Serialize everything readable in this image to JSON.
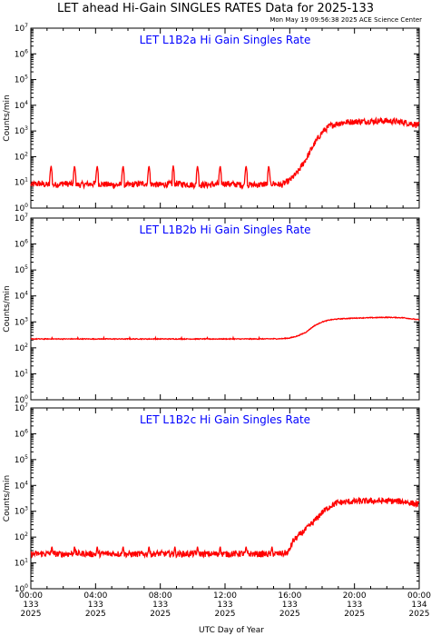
{
  "header": {
    "title": "LET ahead Hi-Gain SINGLES RATES Data for 2025-133",
    "timestamp": "Mon May 19 09:56:38 2025 ACE Science Center"
  },
  "colors": {
    "series": "#ff0000",
    "panel_title": "#0000ff",
    "axis": "#000000"
  },
  "x_axis_label": "UTC Day of Year",
  "chart_data": [
    {
      "type": "line",
      "title": "LET L1B2a Hi Gain Singles Rate",
      "ylabel": "Counts/min",
      "yscale": "log",
      "ylim": [
        1,
        10000000
      ],
      "ytick_exponents": [
        "0",
        "1",
        "2",
        "3",
        "4",
        "5",
        "6",
        "7"
      ],
      "xlim": [
        0,
        24
      ],
      "series": [
        {
          "x": [
            0,
            0.5,
            1,
            1.5,
            2,
            3,
            4,
            5,
            6,
            7,
            8,
            9,
            10,
            11,
            12,
            13,
            14,
            15,
            15.5,
            16,
            16.5,
            17,
            17.5,
            18,
            18.5,
            19,
            19.5,
            20,
            21,
            22,
            23,
            24
          ],
          "values": [
            8,
            9,
            8,
            8,
            9,
            8,
            9,
            8,
            8,
            9,
            8,
            9,
            8,
            8,
            9,
            8,
            8,
            9,
            8,
            12,
            25,
            80,
            300,
            900,
            1600,
            2000,
            2200,
            2300,
            2400,
            2500,
            2200,
            1700
          ]
        }
      ],
      "spikes_x": [
        1.25,
        2.7,
        4.1,
        5.7,
        7.3,
        8.8,
        10.3,
        11.7,
        13.3,
        14.7
      ],
      "spike_value": 45
    },
    {
      "type": "line",
      "title": "LET L1B2b Hi Gain Singles Rate",
      "ylabel": "Counts/min",
      "yscale": "log",
      "ylim": [
        1,
        10000000
      ],
      "ytick_exponents": [
        "0",
        "1",
        "2",
        "3",
        "4",
        "5",
        "6",
        "7"
      ],
      "xlim": [
        0,
        24
      ],
      "series": [
        {
          "x": [
            0,
            2,
            4,
            6,
            8,
            10,
            12,
            14,
            15.5,
            16,
            16.5,
            17,
            17.5,
            18,
            18.5,
            19,
            19.5,
            20,
            21,
            22,
            23,
            24
          ],
          "values": [
            220,
            220,
            220,
            220,
            220,
            220,
            220,
            220,
            225,
            240,
            290,
            400,
            700,
            1000,
            1200,
            1300,
            1350,
            1400,
            1450,
            1500,
            1450,
            1200
          ]
        }
      ],
      "spikes_x": [
        1.3,
        2.9,
        4.5,
        6.1,
        7.7,
        9.3,
        10.9,
        12.5,
        14.1
      ],
      "spike_value": 260
    },
    {
      "type": "line",
      "title": "LET L1B2c Hi Gain Singles Rate",
      "ylabel": "Counts/min",
      "yscale": "log",
      "ylim": [
        1,
        10000000
      ],
      "ytick_exponents": [
        "0",
        "1",
        "2",
        "3",
        "4",
        "5",
        "6",
        "7"
      ],
      "xlim": [
        0,
        24
      ],
      "xticks": [
        0,
        4,
        8,
        12,
        16,
        20,
        24
      ],
      "xtick_labels": [
        [
          "00:00",
          "133",
          "2025"
        ],
        [
          "04:00",
          "133",
          "2025"
        ],
        [
          "08:00",
          "133",
          "2025"
        ],
        [
          "12:00",
          "133",
          "2025"
        ],
        [
          "16:00",
          "133",
          "2025"
        ],
        [
          "20:00",
          "133",
          "2025"
        ],
        [
          "00:00",
          "134",
          "2025"
        ]
      ],
      "series": [
        {
          "x": [
            0,
            1,
            2,
            3,
            4,
            5,
            6,
            7,
            8,
            9,
            10,
            11,
            12,
            13,
            14,
            15,
            15.5,
            15.9,
            16.2,
            16.6,
            17,
            17.5,
            18,
            18.5,
            19,
            19.5,
            20,
            21,
            22,
            23,
            24
          ],
          "values": [
            22,
            23,
            22,
            23,
            22,
            23,
            22,
            22,
            23,
            22,
            23,
            22,
            22,
            23,
            22,
            22,
            23,
            25,
            70,
            120,
            200,
            400,
            900,
            1600,
            2200,
            2300,
            2400,
            2500,
            2500,
            2400,
            1800
          ]
        }
      ],
      "spikes_x": [
        1.3,
        2.7,
        4.1,
        5.7,
        7.3,
        8.9,
        10.3,
        11.7,
        13.3,
        14.9
      ],
      "spike_value": 45
    }
  ]
}
